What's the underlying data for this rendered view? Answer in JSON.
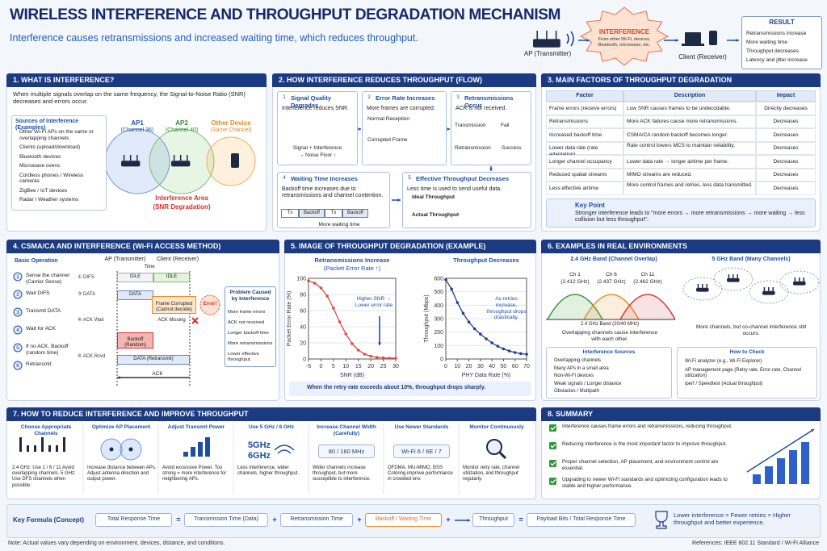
{
  "header": {
    "title": "WIRELESS INTERFERENCE AND THROUGHPUT DEGRADATION MECHANISM",
    "subtitle": "Interference causes retransmissions and increased waiting time, which reduces throughput.",
    "ap": "AP (Transmitter)",
    "interference": {
      "title": "INTERFERENCE",
      "text": "From other Wi-Fi, devices, Bluetooth, microwave, etc."
    },
    "client": "Client (Receiver)",
    "result": {
      "title": "RESULT",
      "items": [
        "Retransmissions increase",
        "More waiting time",
        "Throughput decreases",
        "Latency and jitter increase"
      ]
    }
  },
  "s1": {
    "title": "1. WHAT IS INTERFERENCE?",
    "intro": "When multiple signals overlap on the same frequency, the Signal-to-Noise Ratio (SNR) decreases and errors occur.",
    "sources_title": "Sources of Interference (Examples)",
    "sources": [
      "Other Wi-Fi APs on the same or overlapping channels",
      "Clients (upload/download)",
      "Bluetooth devices",
      "Microwave ovens",
      "Cordless phones / Wireless cameras",
      "ZigBee / IoT devices",
      "Radar / Weather systems"
    ],
    "ap1": "AP1",
    "ap1_ch": "(Channel 36)",
    "ap2": "AP2",
    "ap2_ch": "(Channel 40)",
    "other": "Other Device",
    "other_ch": "(Same Channel)",
    "area": "Interference Area",
    "area_sub": "(SNR Degradation)"
  },
  "s2": {
    "title": "2. HOW INTERFERENCE REDUCES THROUGHPUT (FLOW)",
    "steps": [
      {
        "num": "1",
        "title": "Signal Quality Degrades",
        "desc": "Interference reduces SNR.",
        "a": "Signal + Interference",
        "b": "→ Noise Floor ↑"
      },
      {
        "num": "2",
        "title": "Error Rate Increases",
        "desc": "More frames are corrupted.",
        "a": "Normal Reception",
        "b": "Corrupted Frame"
      },
      {
        "num": "3",
        "title": "Retransmissions Occur",
        "desc": "ACK is not received.",
        "a": "Transmission",
        "a2": "Fail",
        "b": "Retransmission",
        "b2": "Success"
      },
      {
        "num": "4",
        "title": "Waiting Time Increases",
        "desc": "Backoff time increases due to retransmissions and channel contention.",
        "blocks": [
          "Tx",
          "Backoff",
          "Tx",
          "Backoff"
        ],
        "a": "More waiting time"
      },
      {
        "num": "5",
        "title": "Effective Throughput Decreases",
        "desc": "Less time is used to send useful data.",
        "a": "Ideal Throughput",
        "b": "Actual Throughput"
      }
    ]
  },
  "s3": {
    "title": "3. MAIN FACTORS OF THROUGHPUT DEGRADATION",
    "header": [
      "Factor",
      "Description",
      "Impact"
    ],
    "rows": [
      [
        "Frame errors (receive errors)",
        "Low SNR causes frames to be undecodable.",
        "Directly decreases"
      ],
      [
        "Retransmissions",
        "More ACK failures cause more retransmissions.",
        "Decreases"
      ],
      [
        "Increased backoff time",
        "CSMA/CA random backoff becomes longer.",
        "Decreases"
      ],
      [
        "Lower data rate (rate adaptation)",
        "Rate control lowers MCS to maintain reliability.",
        "Decreases"
      ],
      [
        "Longer channel occupancy",
        "Lower data rate → longer airtime per frame.",
        "Decreases"
      ],
      [
        "Reduced spatial streams",
        "MIMO streams are reduced.",
        "Decreases"
      ],
      [
        "Less effective airtime",
        "More control frames and retries, less data transmitted.",
        "Decreases"
      ]
    ],
    "key_title": "Key Point",
    "key_text": "Stronger interference leads to \"more errors → more retransmissions → more waiting → less collision but less throughput\"."
  },
  "s4": {
    "title": "4. CSMA/CA AND INTERFERENCE  (Wi-Fi ACCESS METHOD)",
    "basic": "Basic Operation",
    "steps": [
      {
        "num": "1",
        "text": "Sense the channel (Carrier Sense)"
      },
      {
        "num": "2",
        "text": "Wait DIFS"
      },
      {
        "num": "3",
        "text": "Transmit DATA"
      },
      {
        "num": "4",
        "text": "Wait for ACK"
      },
      {
        "num": "5",
        "text": "If no ACK, Backoff (random time)"
      },
      {
        "num": "6",
        "text": "Retransmit"
      }
    ],
    "ap": "AP (Transmitter)",
    "client": "Client (Receiver)",
    "time": "Time",
    "marks": [
      "① DIFS",
      "③ DATA",
      "④ ACK Wait",
      "⑥ ACK Rcvd"
    ],
    "idle": "IDLE",
    "data": "DATA",
    "corrupted": "Frame Corrupted (Cannot decode)",
    "error": "Error!",
    "ack_missing": "ACK Missing",
    "backoff": "Backoff (Random)",
    "retransmit": "DATA (Retransmit)",
    "ack": "ACK",
    "problem_title": "Problem Caused by Interference",
    "problems": [
      "More frame errors",
      "ACK not received",
      "Longer backoff time",
      "More retransmissions",
      "Lower effective throughput"
    ]
  },
  "s5": {
    "title": "5. IMAGE OF THROUGHPUT DEGRADATION (EXAMPLE)",
    "charts": [
      {
        "type": "line",
        "title": "Retransmissions Increase",
        "subtitle": "(Packet Error Rate ↑)",
        "ylabel": "Packet Error Rate (%)",
        "xlabel": "SNR (dB)",
        "annotation": "Higher SNR → Lower error rate",
        "color": "#e2483d",
        "x": [
          -5,
          -2.5,
          0,
          2.5,
          5,
          7.5,
          10,
          12.5,
          15,
          17.5,
          20,
          22.5,
          25,
          27.5,
          30
        ],
        "values": [
          97,
          94,
          88,
          78,
          63,
          46,
          31,
          19,
          11,
          6,
          3.5,
          2,
          1.5,
          1,
          1
        ],
        "xlim": [
          -5,
          30
        ],
        "ylim": [
          0,
          100
        ],
        "xticks": [
          -5,
          0,
          5,
          10,
          15,
          20,
          25,
          30
        ],
        "yticks": [
          0,
          20,
          40,
          60,
          80,
          100
        ],
        "grid": true
      },
      {
        "type": "line",
        "title": "Throughput Decreases",
        "ylabel": "Throughput (Mbps)",
        "xlabel": "PHY Data Rate (%)",
        "annotation": "As retries increase, throughput drops drastically.",
        "color": "#1d3f94",
        "x": [
          0,
          5,
          10,
          15,
          20,
          25,
          30,
          35,
          40,
          45,
          50,
          55,
          60,
          65,
          70
        ],
        "values": [
          590,
          520,
          420,
          340,
          275,
          225,
          185,
          150,
          120,
          95,
          75,
          60,
          48,
          40,
          35
        ],
        "xlim": [
          0,
          70
        ],
        "ylim": [
          0,
          600
        ],
        "xticks": [
          0,
          10,
          20,
          30,
          40,
          50,
          60,
          70
        ],
        "yticks": [
          0,
          100,
          200,
          300,
          400,
          500,
          600
        ],
        "grid": true
      }
    ],
    "note": "When the retry rate exceeds about 10%, throughput drops sharply."
  },
  "s6": {
    "title": "6. EXAMPLES IN REAL ENVIRONMENTS",
    "band24": "2.4 GHz Band (Channel Overlap)",
    "channels": [
      {
        "name": "Ch 1",
        "freq": "(2.412 GHz)",
        "color": "#3a9a3a"
      },
      {
        "name": "Ch 6",
        "freq": "(2.437 GHz)",
        "color": "#e8902a"
      },
      {
        "name": "Ch 11",
        "freq": "(2.462 GHz)",
        "color": "#d63a3a"
      }
    ],
    "axis": "2.4 GHz Band (20/40 MHz)",
    "note24": "Overlapping channels cause interference with each other.",
    "band5": "5 GHz Band (Many Channels)",
    "note5": "More channels, but co-channel interference still occurs.",
    "sources_title": "Interference Sources",
    "sources": [
      "Overlapping channels",
      "Many APs in a small area",
      "Non-Wi-Fi devices",
      "Weak signals / Longer distance",
      "Obstacles / Multipath"
    ],
    "check_title": "How to Check",
    "checks": [
      "Wi-Fi analyzer (e.g., Wi-Fi Explorer)",
      "AP management page (Retry rate, Error rate, Channel utilization)",
      "iperf / Speedtest (Actual throughput)"
    ]
  },
  "s7": {
    "title": "7. HOW TO REDUCE INTERFERENCE AND IMPROVE THROUGHPUT",
    "items": [
      {
        "title": "Choose Appropriate Channels",
        "desc": "2.4 GHz: Use 1 / 6 / 11 Avoid overlapping channels. 5 GHz: Use DFS channels when possible."
      },
      {
        "title": "Optimize AP Placement",
        "desc": "Increase distance between APs. Adjust antenna direction and output power."
      },
      {
        "title": "Adjust Transmit Power",
        "desc": "Avoid excessive Power. Too strong = more interference for neighboring APs."
      },
      {
        "title": "Use 5 GHz / 6 GHz",
        "icon": "5GHz 6GHz",
        "desc": "Less interference, wider channels, higher throughput."
      },
      {
        "title": "Increase Channel Width (Carefully)",
        "icon": "80 / 160 MHz",
        "desc": "Wider channels increase throughput, but more susceptible to interference."
      },
      {
        "title": "Use Newer Standards",
        "icon": "Wi-Fi 6 / 6E / 7",
        "desc": "OFDMA, MU-MIMO, BSS Coloring improve performance in crowded env."
      },
      {
        "title": "Monitor Continuously",
        "desc": "Monitor retry rate, channel utilization, and throughput regularly."
      }
    ]
  },
  "s8": {
    "title": "8. SUMMARY",
    "items": [
      "Interference causes frame errors and retransmissions, reducing throughput.",
      "Reducing interference is the most important factor to improve throughput.",
      "Proper channel selection, AP placement, and environment control are essential.",
      "Upgrading to newer Wi-Fi standards and optimizing configuration leads to stable and higher performance."
    ]
  },
  "formula": {
    "label": "Key Formula (Concept)",
    "terms": [
      "Total Response Time",
      "=",
      "Transmission Time (Data)",
      "+",
      "Retransmission Time",
      "+",
      "Backoff / Waiting Time",
      "+",
      "Throughput",
      "=",
      "Payload Bits / Total Response Time"
    ],
    "conclusion": "Lower interference = Fewer retries = Higher throughput and better experience."
  },
  "footer": {
    "note": "Note: Actual values vary depending on environment, devices, distance, and conditions.",
    "references": "References: IEEE 802.11 Standard / Wi-Fi Alliance"
  }
}
